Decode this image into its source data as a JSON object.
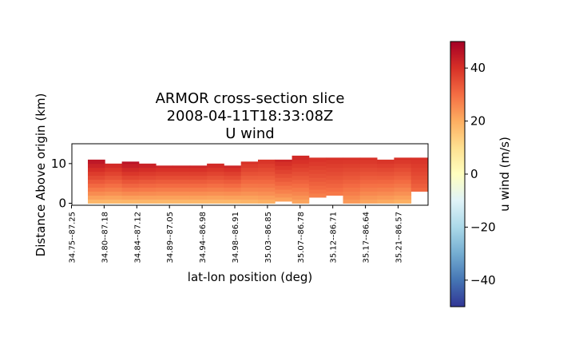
{
  "chart_data": {
    "type": "heatmap",
    "title": [
      "ARMOR cross-section slice",
      "2008-04-11T18:33:08Z",
      "U wind"
    ],
    "xlabel": "lat-lon position (deg)",
    "ylabel": "Distance Above origin (km)",
    "x_tick_labels": [
      "34.75--87.25",
      "34.80--87.18",
      "34.84--87.12",
      "34.89--87.05",
      "34.94--86.98",
      "34.98--86.91",
      "35.03--86.85",
      "35.07--86.78",
      "35.12--86.71",
      "35.17--86.64",
      "35.21--86.57"
    ],
    "y_ticks": [
      0,
      10
    ],
    "ylim": [
      -0.5,
      15
    ],
    "colorbar": {
      "label": "u wind (m/s)",
      "colormap": "RdYlBu_r",
      "range": [
        -50,
        50
      ],
      "ticks": [
        -40,
        -20,
        0,
        20,
        40
      ]
    },
    "columns": [
      {
        "top": 11.0,
        "bottom": 0,
        "ramp": [
          16,
          46
        ]
      },
      {
        "top": 10.0,
        "bottom": 0,
        "ramp": [
          16,
          42
        ]
      },
      {
        "top": 10.5,
        "bottom": 0,
        "ramp": [
          16,
          46
        ]
      },
      {
        "top": 10.0,
        "bottom": 0,
        "ramp": [
          16,
          44
        ]
      },
      {
        "top": 9.5,
        "bottom": 0,
        "ramp": [
          16,
          42
        ]
      },
      {
        "top": 9.5,
        "bottom": 0,
        "ramp": [
          16,
          42
        ]
      },
      {
        "top": 9.5,
        "bottom": 0,
        "ramp": [
          16,
          42
        ]
      },
      {
        "top": 10.0,
        "bottom": 0,
        "ramp": [
          16,
          42
        ]
      },
      {
        "top": 9.5,
        "bottom": 0,
        "ramp": [
          16,
          42
        ]
      },
      {
        "top": 10.5,
        "bottom": 0,
        "ramp": [
          17,
          40
        ]
      },
      {
        "top": 11.0,
        "bottom": 0,
        "ramp": [
          18,
          40
        ]
      },
      {
        "top": 11.0,
        "bottom": 0.5,
        "ramp": [
          20,
          42
        ]
      },
      {
        "top": 12.0,
        "bottom": 0,
        "ramp": [
          20,
          42
        ]
      },
      {
        "top": 11.5,
        "bottom": 1.5,
        "ramp": [
          26,
          40
        ]
      },
      {
        "top": 11.5,
        "bottom": 2.0,
        "ramp": [
          27,
          40
        ]
      },
      {
        "top": 11.5,
        "bottom": 0,
        "ramp": [
          22,
          40
        ]
      },
      {
        "top": 11.5,
        "bottom": 0,
        "ramp": [
          20,
          40
        ]
      },
      {
        "top": 11.0,
        "bottom": 0,
        "ramp": [
          19,
          40
        ]
      },
      {
        "top": 11.5,
        "bottom": 0,
        "ramp": [
          18,
          40
        ]
      },
      {
        "top": 11.5,
        "bottom": 3.0,
        "ramp": [
          30,
          40
        ]
      }
    ]
  }
}
